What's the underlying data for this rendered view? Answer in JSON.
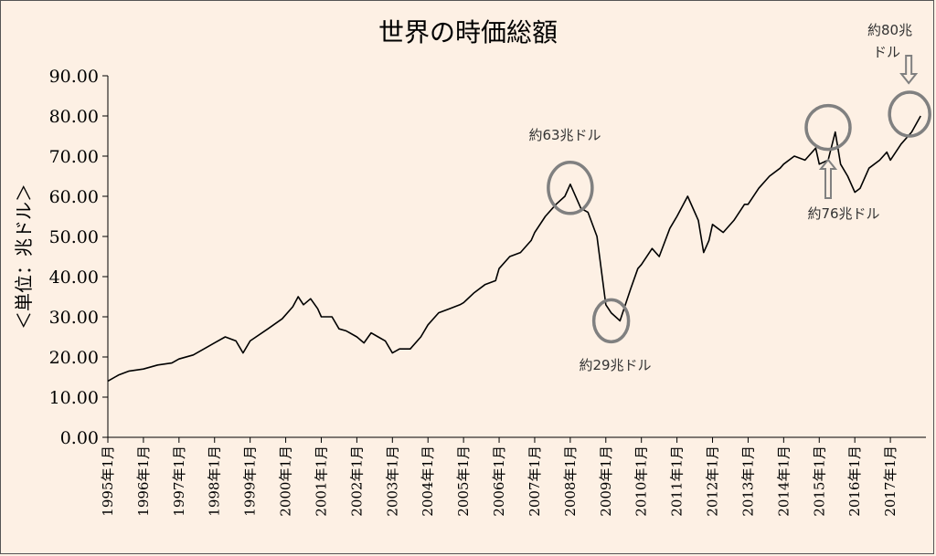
{
  "chart_data": {
    "type": "line",
    "title": "世界の時価総額",
    "ylabel": "＜単位：兆ドル＞",
    "xlabel": "",
    "ylim": [
      0,
      90
    ],
    "y_ticks": [
      "0.00",
      "10.00",
      "20.00",
      "30.00",
      "40.00",
      "50.00",
      "60.00",
      "70.00",
      "80.00",
      "90.00"
    ],
    "x_ticks": [
      "1995年1月",
      "1996年1月",
      "1997年1月",
      "1998年1月",
      "1999年1月",
      "2000年1月",
      "2001年1月",
      "2002年1月",
      "2003年1月",
      "2004年1月",
      "2005年1月",
      "2006年1月",
      "2007年1月",
      "2008年1月",
      "2009年1月",
      "2010年1月",
      "2011年1月",
      "2012年1月",
      "2013年1月",
      "2014年1月",
      "2015年1月",
      "2016年1月",
      "2017年1月"
    ],
    "grid": false,
    "legend": "none",
    "line_color": "#000000",
    "annotation_color": "#808080",
    "series": [
      {
        "x": [
          1995.0,
          1995.3,
          1995.6,
          1996.0,
          1996.4,
          1996.8,
          1997.0,
          1997.4,
          1997.7,
          1998.0,
          1998.3,
          1998.6,
          1998.8,
          1999.0,
          1999.5,
          1999.9,
          2000.2,
          2000.35,
          2000.5,
          2000.7,
          2000.9,
          2001.0,
          2001.3,
          2001.5,
          2001.7,
          2002.0,
          2002.2,
          2002.4,
          2002.6,
          2002.8,
          2003.0,
          2003.2,
          2003.5,
          2003.8,
          2004.0,
          2004.3,
          2004.6,
          2004.9,
          2005.0,
          2005.3,
          2005.6,
          2005.9,
          2006.0,
          2006.3,
          2006.6,
          2006.9,
          2007.0,
          2007.3,
          2007.6,
          2007.85,
          2008.0,
          2008.3,
          2008.5,
          2008.75,
          2009.0,
          2009.15,
          2009.4,
          2009.7,
          2009.9,
          2010.0,
          2010.3,
          2010.5,
          2010.8,
          2011.0,
          2011.3,
          2011.6,
          2011.75,
          2011.9,
          2012.0,
          2012.3,
          2012.6,
          2012.9,
          2013.0,
          2013.3,
          2013.6,
          2013.9,
          2014.0,
          2014.3,
          2014.6,
          2014.9,
          2015.0,
          2015.25,
          2015.45,
          2015.6,
          2015.8,
          2016.0,
          2016.15,
          2016.4,
          2016.7,
          2016.9,
          2017.0,
          2017.3,
          2017.6,
          2017.85
        ],
        "values": [
          14,
          15.5,
          16.5,
          17,
          18,
          18.5,
          19.5,
          20.5,
          22,
          23.5,
          25,
          24,
          21,
          24,
          27,
          29.5,
          32.5,
          35,
          33,
          34.5,
          32,
          30,
          30,
          27,
          26.5,
          25,
          23.5,
          26,
          25,
          24,
          21,
          22,
          22,
          25,
          28,
          31,
          32,
          33,
          33.5,
          36,
          38,
          39,
          42,
          45,
          46,
          49,
          51,
          55,
          58,
          60,
          63,
          57,
          56,
          50,
          33,
          31,
          29,
          37,
          42,
          43,
          47,
          45,
          52,
          55,
          60,
          54,
          46,
          49,
          53,
          51,
          54,
          58,
          58,
          62,
          65,
          67,
          68,
          70,
          69,
          72,
          68,
          69,
          76,
          68,
          65,
          61,
          62,
          67,
          69,
          71,
          69,
          73,
          76,
          80
        ]
      }
    ],
    "annotations": [
      {
        "text": "約63兆ドル",
        "x": 2008.0,
        "y": 63
      },
      {
        "text": "約29兆ドル",
        "x": 2009.15,
        "y": 29
      },
      {
        "text": "約76兆ドル",
        "x": 2015.25,
        "y": 76
      },
      {
        "text_line1": "約80兆",
        "text_line2": "ドル",
        "x": 2017.85,
        "y": 80
      }
    ]
  }
}
